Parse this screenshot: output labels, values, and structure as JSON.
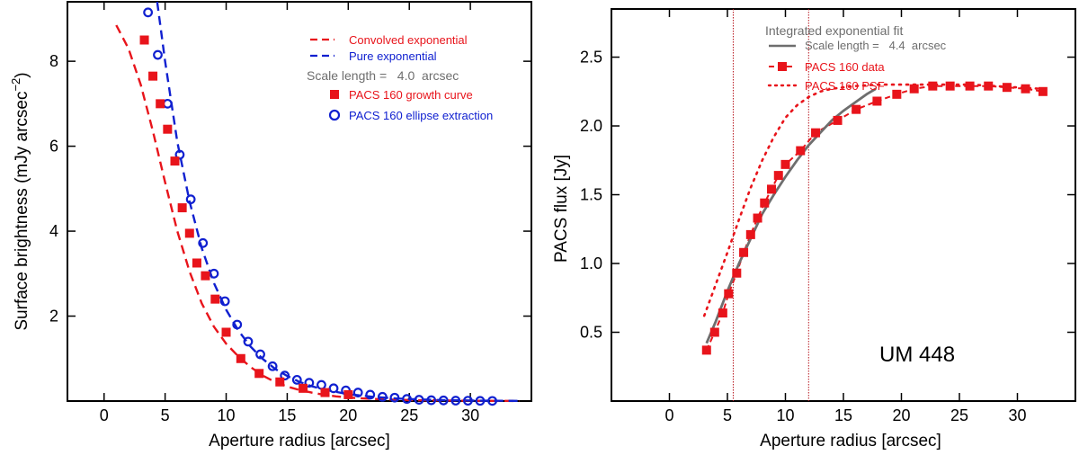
{
  "chart_data": [
    {
      "type": "scatter",
      "xlabel": "Aperture radius [arcsec]",
      "ylabel_main": "Surface brightness (mJy arcsec",
      "ylabel_sup": "−2",
      "ylabel_close": ")",
      "xlim": [
        -3,
        35
      ],
      "ylim": [
        0,
        9.4
      ],
      "xticks": [
        0,
        5,
        10,
        15,
        20,
        25,
        30
      ],
      "xtick_labels": [
        "0",
        "5",
        "10",
        "15",
        "20",
        "25",
        "30"
      ],
      "yticks": [
        2,
        4,
        6,
        8
      ],
      "ytick_labels": [
        "2",
        "4",
        "6",
        "8"
      ],
      "legend": {
        "convolved": "Convolved exponential",
        "pure": "Pure exponential",
        "scale": "Scale length =   4.0  arcsec",
        "growth": "PACS 160 growth curve",
        "ellipse": "PACS 160 ellipse extraction"
      },
      "colors": {
        "red": "#e8141b",
        "blue": "#1020d0",
        "gray": "#6e6e6e"
      },
      "series": {
        "convolved_exponential": {
          "x": [
            1,
            2,
            3,
            4,
            5,
            6,
            7,
            8,
            9,
            10,
            11,
            12,
            13,
            14,
            15,
            16,
            17,
            18,
            19,
            20,
            22,
            24,
            26,
            28,
            30,
            32,
            34
          ],
          "y": [
            8.85,
            8.3,
            7.45,
            6.35,
            5.15,
            4.0,
            3.05,
            2.3,
            1.75,
            1.35,
            1.05,
            0.8,
            0.6,
            0.45,
            0.34,
            0.26,
            0.2,
            0.15,
            0.11,
            0.08,
            0.05,
            0.03,
            0.02,
            0.012,
            0.008,
            0.005,
            0.003
          ]
        },
        "pure_exponential": {
          "x": [
            4.35,
            5,
            6,
            7,
            8,
            9,
            10,
            11,
            12,
            13,
            14,
            15,
            16,
            17,
            18,
            20,
            22,
            24,
            26,
            28,
            30,
            32,
            34
          ],
          "y": [
            9.4,
            8.0,
            6.1,
            4.7,
            3.6,
            2.78,
            2.15,
            1.66,
            1.28,
            0.99,
            0.76,
            0.59,
            0.45,
            0.35,
            0.27,
            0.16,
            0.1,
            0.06,
            0.035,
            0.02,
            0.012,
            0.007,
            0.004
          ]
        },
        "growth_curve": {
          "x": [
            3.3,
            4.0,
            4.6,
            5.2,
            5.8,
            6.4,
            7.0,
            7.6,
            8.3,
            9.1,
            10.0,
            11.2,
            12.7,
            14.4,
            16.3,
            18.1,
            20.0
          ],
          "y": [
            8.5,
            7.65,
            7.0,
            6.4,
            5.65,
            4.55,
            3.95,
            3.25,
            2.95,
            2.4,
            1.62,
            1.0,
            0.65,
            0.45,
            0.3,
            0.2,
            0.15
          ]
        },
        "ellipse_extraction": {
          "x": [
            3.6,
            4.4,
            5.2,
            6.2,
            7.1,
            8.1,
            9.0,
            9.9,
            10.9,
            11.8,
            12.8,
            13.8,
            14.8,
            15.8,
            16.8,
            17.8,
            18.8,
            19.8,
            20.8,
            21.8,
            22.8,
            23.8,
            24.8,
            25.8,
            26.8,
            27.8,
            28.8,
            29.8,
            30.8,
            31.8
          ],
          "y": [
            9.15,
            8.15,
            7.0,
            5.8,
            4.75,
            3.72,
            3.0,
            2.35,
            1.8,
            1.4,
            1.1,
            0.82,
            0.6,
            0.5,
            0.43,
            0.38,
            0.3,
            0.25,
            0.2,
            0.15,
            0.1,
            0.08,
            0.05,
            0.03,
            0.02,
            0.015,
            0.01,
            0.008,
            0.005,
            0.003
          ]
        }
      }
    },
    {
      "type": "line",
      "xlabel": "Aperture radius [arcsec]",
      "ylabel": "PACS flux [Jy]",
      "xlim": [
        -5,
        35
      ],
      "ylim": [
        0.0,
        2.85
      ],
      "xticks": [
        0,
        5,
        10,
        15,
        20,
        25,
        30
      ],
      "xtick_labels": [
        "0",
        "5",
        "10",
        "15",
        "20",
        "25",
        "30"
      ],
      "yticks": [
        0.5,
        1.0,
        1.5,
        2.0,
        2.5
      ],
      "ytick_labels": [
        "0.5",
        "1.0",
        "1.5",
        "2.0",
        "2.5"
      ],
      "vlines": [
        5.5,
        12.0
      ],
      "annotation": "UM 448",
      "legend": {
        "title": "Integrated exponential fit",
        "scale": "Scale length =   4.4  arcsec",
        "data": "PACS 160 data",
        "psf": "PACS 160 PSF"
      },
      "colors": {
        "red": "#e8141b",
        "gray": "#6e6e6e",
        "vline": "#b81820"
      },
      "series": {
        "data": {
          "x": [
            3.2,
            3.9,
            4.6,
            5.1,
            5.8,
            6.4,
            7.0,
            7.6,
            8.2,
            8.8,
            9.4,
            10.0,
            11.3,
            12.6,
            14.5,
            16.1,
            17.9,
            19.6,
            21.1,
            22.7,
            24.2,
            25.9,
            27.5,
            29.1,
            30.7,
            32.2
          ],
          "y": [
            0.37,
            0.5,
            0.64,
            0.78,
            0.93,
            1.08,
            1.21,
            1.33,
            1.44,
            1.54,
            1.64,
            1.72,
            1.82,
            1.95,
            2.04,
            2.12,
            2.18,
            2.23,
            2.27,
            2.29,
            2.29,
            2.29,
            2.29,
            2.28,
            2.27,
            2.25
          ]
        },
        "exp_fit": {
          "x": [
            3.2,
            4,
            5,
            6,
            7,
            8,
            9,
            10,
            11,
            12,
            13,
            14,
            15,
            16,
            17,
            17.8
          ],
          "y": [
            0.42,
            0.58,
            0.8,
            1.0,
            1.18,
            1.36,
            1.5,
            1.63,
            1.75,
            1.86,
            1.95,
            2.04,
            2.11,
            2.17,
            2.23,
            2.27
          ]
        },
        "psf": {
          "x": [
            3.0,
            4.0,
            5.0,
            6.0,
            7.0,
            8.0,
            9.0,
            10.0,
            11.0,
            12.0,
            13.0,
            14.0,
            15.0,
            16.0,
            18.0,
            20.0,
            22.0,
            24.0,
            26.0,
            28.0,
            30.0,
            32.0
          ],
          "y": [
            0.62,
            0.85,
            1.08,
            1.32,
            1.55,
            1.75,
            1.92,
            2.06,
            2.15,
            2.21,
            2.25,
            2.27,
            2.28,
            2.29,
            2.3,
            2.3,
            2.3,
            2.3,
            2.3,
            2.29,
            2.28,
            2.27
          ]
        }
      }
    }
  ]
}
